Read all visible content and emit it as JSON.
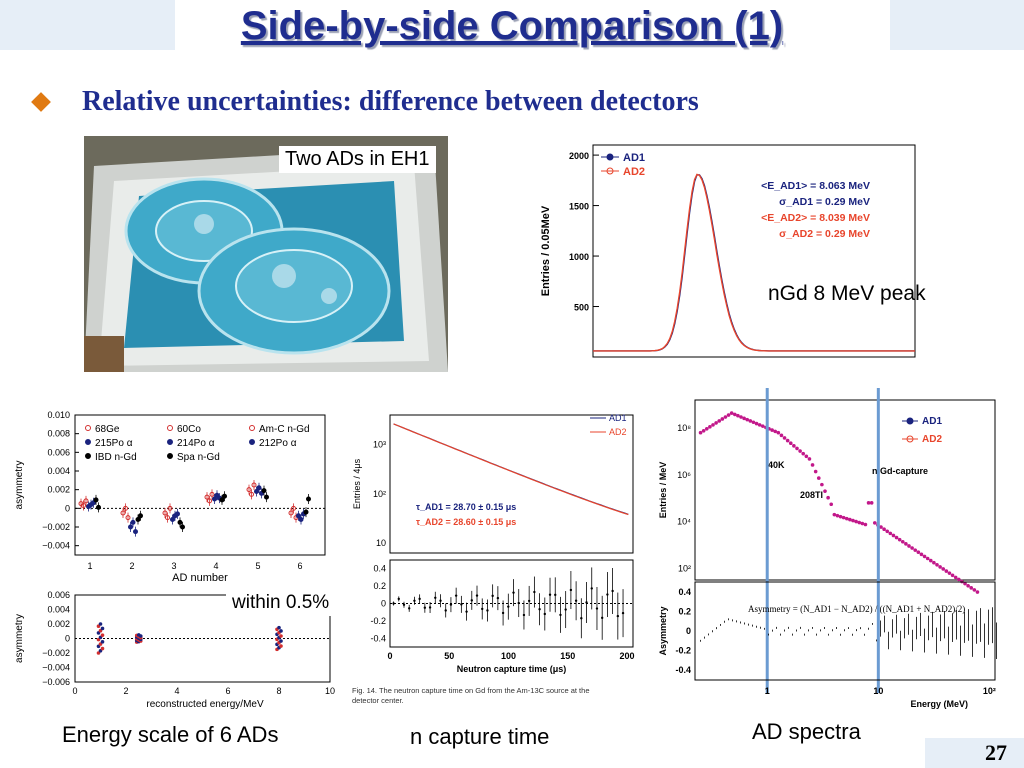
{
  "slide": {
    "title": "Side-by-side Comparison (1)",
    "subtitle": "Relative uncertainties:  difference between detectors",
    "page_number": "27",
    "colors": {
      "title": "#1f2d8f",
      "bullet": "#e07a12",
      "corner": "#e6eef7"
    }
  },
  "photo": {
    "caption": "Two ADs in EH1"
  },
  "labels": {
    "ngd_peak": "nGd 8 MeV peak",
    "within": "within 0.5%",
    "energy_scale": "Energy scale of 6 ADs",
    "capture_time": "n capture time",
    "ad_spectra": "AD spectra"
  },
  "chart_data": [
    {
      "type": "line",
      "id": "ngd-peak",
      "ylabel": "Entries / 0.05MeV",
      "yticks": [
        "2000",
        "1500",
        "1000",
        "500"
      ],
      "ylim": [
        0,
        2000
      ],
      "legend": [
        "AD1",
        "AD2"
      ],
      "annotations": [
        "<E_AD1> = 8.063 MeV",
        "σ_AD1 = 0.29 MeV",
        "<E_AD2> = 8.039 MeV",
        "σ_AD2 = 0.29 MeV"
      ],
      "series": [
        {
          "name": "AD1",
          "color": "#1a237e",
          "peak_mean": 8.063,
          "sigma": 0.29
        },
        {
          "name": "AD2",
          "color": "#e8452c",
          "peak_mean": 8.039,
          "sigma": 0.29
        }
      ]
    },
    {
      "type": "scatter",
      "id": "energy-scale",
      "ylabel": "asymmetry",
      "xlabel": "AD number",
      "yticks": [
        "0.010",
        "0.008",
        "0.006",
        "0.004",
        "0.002",
        "0",
        "−0.002",
        "−0.004"
      ],
      "xticks": [
        "1",
        "2",
        "3",
        "4",
        "5",
        "6"
      ],
      "ylim": [
        -0.005,
        0.01
      ],
      "legend": [
        "68Ge",
        "60Co",
        "Am-C n-Gd",
        "215Po α",
        "214Po α",
        "212Po α",
        "IBD n-Gd",
        "Spa n-Gd"
      ],
      "points": [
        {
          "ad": 1,
          "values": [
            0.0005,
            0.0003,
            0.0008,
            0.0002,
            0.0004,
            0.0006,
            0.0009,
            0.0001
          ]
        },
        {
          "ad": 2,
          "values": [
            -0.0005,
            0.0,
            -0.001,
            -0.002,
            -0.0015,
            -0.0025,
            -0.0012,
            -0.0008
          ]
        },
        {
          "ad": 3,
          "values": [
            -0.0005,
            -0.001,
            0.0,
            -0.0012,
            -0.0008,
            -0.0006,
            -0.0015,
            -0.002
          ]
        },
        {
          "ad": 4,
          "values": [
            0.0012,
            0.0008,
            0.0015,
            0.001,
            0.0014,
            0.0011,
            0.0009,
            0.0013
          ]
        },
        {
          "ad": 5,
          "values": [
            0.002,
            0.0015,
            0.0025,
            0.0018,
            0.0022,
            0.0016,
            0.0019,
            0.0012
          ]
        },
        {
          "ad": 6,
          "values": [
            -0.0005,
            0.0,
            -0.001,
            -0.0008,
            -0.0012,
            -0.0006,
            -0.0004,
            0.001
          ]
        }
      ]
    },
    {
      "type": "scatter",
      "id": "energy-asym",
      "ylabel": "asymmetry",
      "xlabel": "reconstructed energy/MeV",
      "yticks": [
        "0.006",
        "0.004",
        "0.002",
        "0",
        "−0.002",
        "−0.004",
        "−0.006"
      ],
      "xticks": [
        "0",
        "2",
        "4",
        "6",
        "8",
        "10"
      ],
      "ylim": [
        -0.006,
        0.006
      ],
      "clusters": [
        {
          "energy": 1.0,
          "spread": 0.004
        },
        {
          "energy": 2.5,
          "spread": 0.001
        },
        {
          "energy": 8.0,
          "spread": 0.003
        }
      ]
    },
    {
      "type": "line",
      "id": "capture-time",
      "ylabel": "Entries / 4μs",
      "xlabel": "Neutron capture time (μs)",
      "yticks": [
        "10³",
        "10²",
        "10"
      ],
      "xticks": [
        "0",
        "50",
        "100",
        "150",
        "200"
      ],
      "legend": [
        "AD1",
        "AD2"
      ],
      "annotations": [
        "τ_AD1 = 28.70 ± 0.15 μs",
        "τ_AD2 = 28.60 ± 0.15 μs"
      ],
      "series": [
        {
          "name": "AD1",
          "tau": 28.7
        },
        {
          "name": "AD2",
          "tau": 28.6
        }
      ],
      "ratio_yticks": [
        "0.4",
        "0.2",
        "0",
        "-0.2",
        "-0.4"
      ],
      "caption": "Fig. 14. The neutron capture time on Gd from the Am-13C source at the detector center."
    },
    {
      "type": "line",
      "id": "ad-spectra",
      "ylabel": "Entries / MeV",
      "xlabel": "Energy (MeV)",
      "yticks": [
        "10⁸",
        "10⁶",
        "10⁴",
        "10²"
      ],
      "xticks": [
        "1",
        "10",
        "10²"
      ],
      "legend": [
        "AD1",
        "AD2"
      ],
      "annotations": [
        "40K",
        "208Tl",
        "n Gd-capture"
      ],
      "formula": "Asymmetry = (N_AD1 − N_AD2) / ((N_AD1 + N_AD2)/2)",
      "ratio_ylabel": "Asymmetry",
      "ratio_yticks": [
        "0.4",
        "0.2",
        "0",
        "-0.2",
        "-0.4"
      ]
    }
  ]
}
